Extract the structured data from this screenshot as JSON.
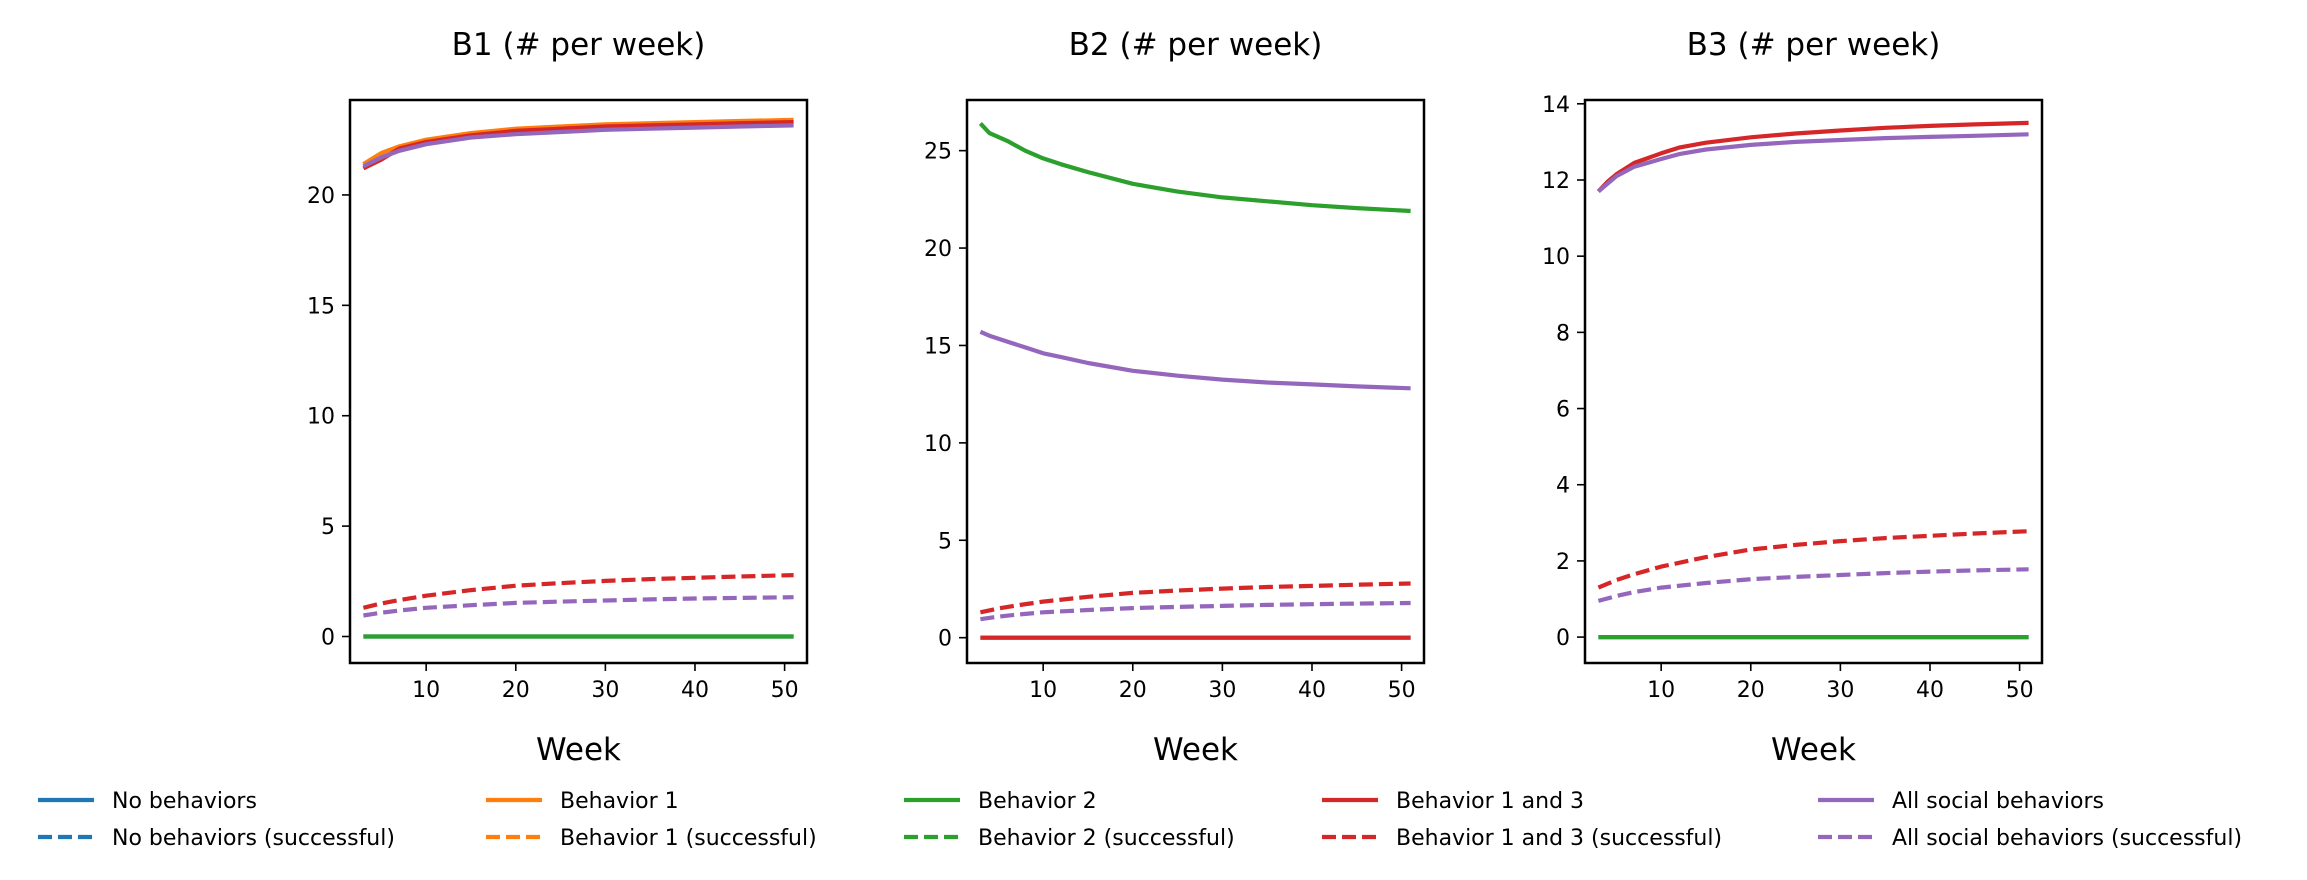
{
  "chart_data": [
    {
      "type": "line",
      "title": "B1 (# per week)",
      "xlabel": "Week",
      "ylabel": "",
      "xlim": [
        1.5,
        52.5
      ],
      "ylim": [
        -1.2,
        24.3
      ],
      "xticks": [
        10,
        20,
        30,
        40,
        50
      ],
      "yticks": [
        0,
        5,
        10,
        15,
        20
      ],
      "grid": false,
      "series": [
        {
          "name": "No behaviors",
          "color": "#1f77b4",
          "dashed": false,
          "x": [
            3,
            51
          ],
          "y": [
            0,
            0
          ]
        },
        {
          "name": "Behavior 1",
          "color": "#ff7f0e",
          "dashed": false,
          "x": [
            3,
            5,
            7,
            10,
            15,
            20,
            25,
            30,
            35,
            40,
            45,
            51
          ],
          "y": [
            21.4,
            21.9,
            22.2,
            22.5,
            22.8,
            23.0,
            23.1,
            23.2,
            23.25,
            23.3,
            23.35,
            23.4
          ]
        },
        {
          "name": "Behavior 2",
          "color": "#2ca02c",
          "dashed": false,
          "x": [
            3,
            51
          ],
          "y": [
            0,
            0
          ]
        },
        {
          "name": "Behavior 1 and 3",
          "color": "#d62728",
          "dashed": false,
          "x": [
            3,
            5,
            7,
            10,
            15,
            20,
            25,
            30,
            35,
            40,
            45,
            51
          ],
          "y": [
            21.2,
            21.6,
            22.1,
            22.4,
            22.7,
            22.9,
            23.0,
            23.1,
            23.15,
            23.2,
            23.25,
            23.3
          ]
        },
        {
          "name": "Behavior 1 and 3 (successful)",
          "color": "#d62728",
          "dashed": true,
          "x": [
            3,
            5,
            7,
            10,
            15,
            20,
            25,
            30,
            35,
            40,
            45,
            51
          ],
          "y": [
            1.3,
            1.5,
            1.65,
            1.85,
            2.1,
            2.3,
            2.42,
            2.52,
            2.6,
            2.66,
            2.72,
            2.78
          ]
        },
        {
          "name": "All social behaviors",
          "color": "#9467bd",
          "dashed": false,
          "x": [
            3,
            5,
            7,
            10,
            15,
            20,
            25,
            30,
            35,
            40,
            45,
            51
          ],
          "y": [
            21.3,
            21.7,
            22.0,
            22.3,
            22.6,
            22.75,
            22.85,
            22.95,
            23.0,
            23.05,
            23.1,
            23.15
          ]
        },
        {
          "name": "All social behaviors (successful)",
          "color": "#9467bd",
          "dashed": true,
          "x": [
            3,
            5,
            7,
            10,
            15,
            20,
            25,
            30,
            35,
            40,
            45,
            51
          ],
          "y": [
            0.95,
            1.08,
            1.18,
            1.3,
            1.42,
            1.52,
            1.58,
            1.63,
            1.68,
            1.72,
            1.75,
            1.78
          ]
        }
      ]
    },
    {
      "type": "line",
      "title": "B2 (# per week)",
      "xlabel": "Week",
      "ylabel": "",
      "xlim": [
        1.5,
        52.5
      ],
      "ylim": [
        -1.3,
        27.6
      ],
      "xticks": [
        10,
        20,
        30,
        40,
        50
      ],
      "yticks": [
        0,
        5,
        10,
        15,
        20,
        25
      ],
      "grid": false,
      "series": [
        {
          "name": "No behaviors",
          "color": "#1f77b4",
          "dashed": false,
          "x": [
            3,
            51
          ],
          "y": [
            0,
            0
          ]
        },
        {
          "name": "Behavior 2",
          "color": "#2ca02c",
          "dashed": false,
          "x": [
            3,
            4,
            6,
            8,
            10,
            12,
            15,
            20,
            25,
            30,
            35,
            40,
            45,
            51
          ],
          "y": [
            26.4,
            25.9,
            25.5,
            25.0,
            24.6,
            24.3,
            23.9,
            23.3,
            22.9,
            22.6,
            22.4,
            22.2,
            22.05,
            21.9
          ]
        },
        {
          "name": "Behavior 1 and 3",
          "color": "#d62728",
          "dashed": false,
          "x": [
            3,
            51
          ],
          "y": [
            0,
            0
          ]
        },
        {
          "name": "Behavior 1 and 3 (successful)",
          "color": "#d62728",
          "dashed": true,
          "x": [
            3,
            5,
            7,
            10,
            15,
            20,
            25,
            30,
            35,
            40,
            45,
            51
          ],
          "y": [
            1.3,
            1.5,
            1.65,
            1.85,
            2.1,
            2.3,
            2.42,
            2.52,
            2.6,
            2.66,
            2.72,
            2.78
          ]
        },
        {
          "name": "All social behaviors",
          "color": "#9467bd",
          "dashed": false,
          "x": [
            3,
            4,
            6,
            8,
            10,
            12,
            15,
            20,
            25,
            30,
            35,
            40,
            45,
            51
          ],
          "y": [
            15.7,
            15.5,
            15.2,
            14.9,
            14.6,
            14.4,
            14.1,
            13.7,
            13.45,
            13.25,
            13.1,
            13.0,
            12.9,
            12.8
          ]
        },
        {
          "name": "All social behaviors (successful)",
          "color": "#9467bd",
          "dashed": true,
          "x": [
            3,
            5,
            7,
            10,
            15,
            20,
            25,
            30,
            35,
            40,
            45,
            51
          ],
          "y": [
            0.95,
            1.08,
            1.18,
            1.3,
            1.42,
            1.52,
            1.58,
            1.63,
            1.68,
            1.72,
            1.75,
            1.78
          ]
        }
      ]
    },
    {
      "type": "line",
      "title": "B3 (# per week)",
      "xlabel": "Week",
      "ylabel": "",
      "xlim": [
        1.5,
        52.5
      ],
      "ylim": [
        -0.68,
        14.1
      ],
      "xticks": [
        10,
        20,
        30,
        40,
        50
      ],
      "yticks": [
        0,
        2,
        4,
        6,
        8,
        10,
        12,
        14
      ],
      "grid": false,
      "series": [
        {
          "name": "No behaviors",
          "color": "#1f77b4",
          "dashed": false,
          "x": [
            3,
            51
          ],
          "y": [
            0,
            0
          ]
        },
        {
          "name": "Behavior 2",
          "color": "#2ca02c",
          "dashed": false,
          "x": [
            3,
            51
          ],
          "y": [
            0,
            0
          ]
        },
        {
          "name": "Behavior 1 and 3",
          "color": "#d62728",
          "dashed": false,
          "x": [
            3,
            4,
            5,
            7,
            10,
            12,
            15,
            20,
            25,
            30,
            35,
            40,
            45,
            51
          ],
          "y": [
            11.7,
            11.95,
            12.15,
            12.45,
            12.7,
            12.85,
            12.98,
            13.12,
            13.22,
            13.3,
            13.37,
            13.42,
            13.46,
            13.5
          ]
        },
        {
          "name": "Behavior 1 and 3 (successful)",
          "color": "#d62728",
          "dashed": true,
          "x": [
            3,
            5,
            7,
            10,
            15,
            20,
            25,
            30,
            35,
            40,
            45,
            51
          ],
          "y": [
            1.3,
            1.5,
            1.65,
            1.85,
            2.1,
            2.3,
            2.42,
            2.52,
            2.6,
            2.66,
            2.72,
            2.78
          ]
        },
        {
          "name": "All social behaviors",
          "color": "#9467bd",
          "dashed": false,
          "x": [
            3,
            4,
            5,
            7,
            10,
            12,
            15,
            20,
            25,
            30,
            35,
            40,
            45,
            51
          ],
          "y": [
            11.7,
            11.9,
            12.1,
            12.35,
            12.55,
            12.68,
            12.8,
            12.92,
            13.0,
            13.05,
            13.1,
            13.13,
            13.16,
            13.2
          ]
        },
        {
          "name": "All social behaviors (successful)",
          "color": "#9467bd",
          "dashed": true,
          "x": [
            3,
            5,
            7,
            10,
            15,
            20,
            25,
            30,
            35,
            40,
            45,
            51
          ],
          "y": [
            0.95,
            1.08,
            1.18,
            1.3,
            1.42,
            1.52,
            1.58,
            1.63,
            1.68,
            1.72,
            1.75,
            1.78
          ]
        }
      ]
    }
  ],
  "legend": {
    "placement": "bottom",
    "entries": [
      {
        "label": "No behaviors",
        "color": "#1f77b4",
        "dashed": false
      },
      {
        "label": "No behaviors (successful)",
        "color": "#1f77b4",
        "dashed": true
      },
      {
        "label": "Behavior 1",
        "color": "#ff7f0e",
        "dashed": false
      },
      {
        "label": "Behavior 1 (successful)",
        "color": "#ff7f0e",
        "dashed": true
      },
      {
        "label": "Behavior 2",
        "color": "#2ca02c",
        "dashed": false
      },
      {
        "label": "Behavior 2 (successful)",
        "color": "#2ca02c",
        "dashed": true
      },
      {
        "label": "Behavior 1 and 3",
        "color": "#d62728",
        "dashed": false
      },
      {
        "label": "Behavior 1 and 3 (successful)",
        "color": "#d62728",
        "dashed": true
      },
      {
        "label": "All social behaviors",
        "color": "#9467bd",
        "dashed": false
      },
      {
        "label": "All social behaviors (successful)",
        "color": "#9467bd",
        "dashed": true
      }
    ]
  }
}
